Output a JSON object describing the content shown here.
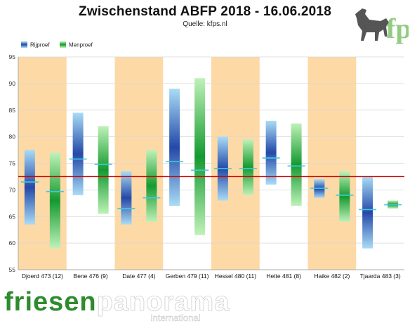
{
  "title": "Zwischenstand ABFP 2018 - 16.06.2018",
  "subtitle": "Quelle: kfps.nl",
  "logo_text": "fp",
  "brand": {
    "part1": "friesen",
    "part2": "panorama",
    "sub": "International"
  },
  "colors": {
    "rijproef_dark": "#2449a8",
    "rijproef_light": "#a9dcf6",
    "menproef_dark": "#149a30",
    "menproef_light": "#bff2b8",
    "band": "#fdd9a6",
    "reference_line": "#cc0000",
    "mean_marker": "#40c8e0"
  },
  "chart_data": {
    "type": "bar",
    "title": "Zwischenstand ABFP 2018 - 16.06.2018",
    "ylim": [
      55,
      95
    ],
    "yticks": [
      55,
      60,
      65,
      70,
      75,
      80,
      85,
      90,
      95
    ],
    "grid": true,
    "legend_position": "top-left",
    "reference_line": 72.5,
    "categories": [
      "Djoerd 473 (12)",
      "Bene 476 (9)",
      "Date 477 (4)",
      "Gerben 479 (11)",
      "Hessel 480 (11)",
      "Hette 481 (8)",
      "Haike 482 (2)",
      "Tjaarda 483 (3)"
    ],
    "highlighted_categories": [
      0,
      2,
      4,
      6
    ],
    "series": [
      {
        "name": "Rijproef",
        "min": [
          63.5,
          69,
          63.5,
          67,
          68,
          71,
          68.5,
          59
        ],
        "max": [
          77.5,
          84.5,
          73.5,
          89,
          80,
          83,
          72,
          72.5
        ],
        "mean": [
          71.5,
          75.8,
          66.5,
          75.3,
          74,
          76,
          70.3,
          66.3
        ]
      },
      {
        "name": "Menproef",
        "min": [
          59,
          65.5,
          64,
          61.5,
          69,
          67,
          64,
          66.5
        ],
        "max": [
          77,
          82,
          77.5,
          91,
          79.5,
          82.5,
          73.5,
          68
        ],
        "mean": [
          69.7,
          74.8,
          68.5,
          73.7,
          74,
          74.5,
          69,
          67.2
        ]
      }
    ]
  }
}
